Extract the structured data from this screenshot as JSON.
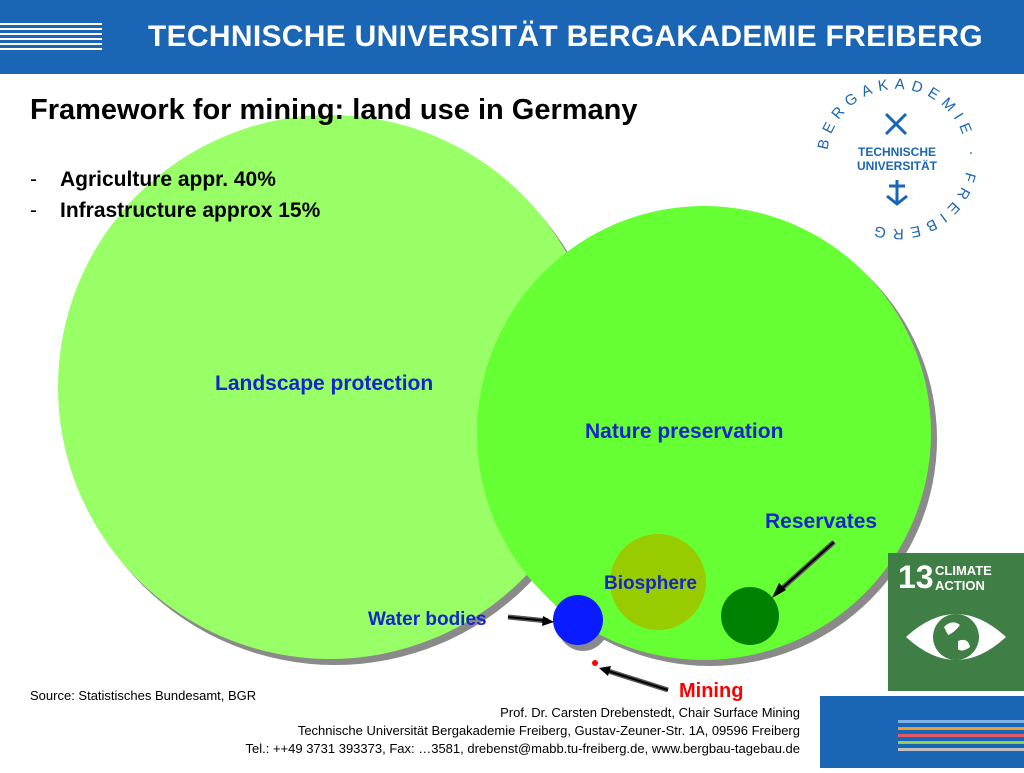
{
  "header": {
    "title": "TECHNISCHE UNIVERSITÄT BERGAKADEMIE FREIBERG"
  },
  "slide": {
    "title": "Framework for mining: land use in Germany",
    "bullets": [
      "Agriculture appr. 40%",
      "Infrastructure approx 15%"
    ]
  },
  "diagram": {
    "labels": {
      "landscape": "Landscape protection",
      "nature": "Nature preservation",
      "reservates": "Reservates",
      "biosphere": "Biosphere",
      "water": "Water bodies",
      "mining": "Mining"
    },
    "colors": {
      "landscape": "#99ff66",
      "nature": "#66ff33",
      "biosphere": "#99cc00",
      "reservates": "#008000",
      "water": "#0033ff",
      "mining": "#ff0000",
      "label": "#1526c8"
    }
  },
  "logo": {
    "ring_text": "BERGAKADEMIE · FREIBERG",
    "inner_line1": "TECHNISCHE",
    "inner_line2": "UNIVERSITÄT"
  },
  "sdg": {
    "number": "13",
    "line1": "CLIMATE",
    "line2": "ACTION",
    "color": "#3f7e44"
  },
  "source": "Source: Statistisches Bundesamt, BGR",
  "footer": {
    "line1": "Prof. Dr. Carsten Drebenstedt, Chair Surface Mining",
    "line2": "Technische Universität Bergakademie Freiberg, Gustav-Zeuner-Str. 1A,  09596 Freiberg",
    "line3": "Tel.: ++49 3731 393373, Fax: …3581, drebenst@mabb.tu-freiberg.de, www.bergbau-tagebau.de"
  }
}
